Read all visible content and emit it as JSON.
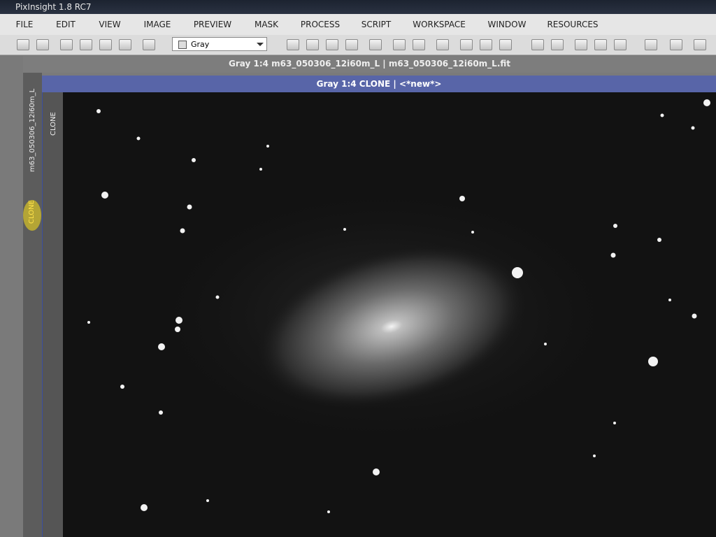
{
  "app": {
    "title": "PixInsight 1.8 RC7"
  },
  "menu": [
    "FILE",
    "EDIT",
    "VIEW",
    "IMAGE",
    "PREVIEW",
    "MASK",
    "PROCESS",
    "SCRIPT",
    "WORKSPACE",
    "WINDOW",
    "RESOURCES"
  ],
  "toolbar": {
    "view_mode": "Gray"
  },
  "windows": [
    {
      "title": "Gray 1:4 m63_050306_12i60m_L | m63_050306_12i60m_L.fit",
      "tab": "m63_050306_12i60m_L"
    },
    {
      "title": "Gray 1:4 CLONE | <*new*>",
      "tab": "CLONE"
    }
  ],
  "workspace_tab": "CLONE"
}
